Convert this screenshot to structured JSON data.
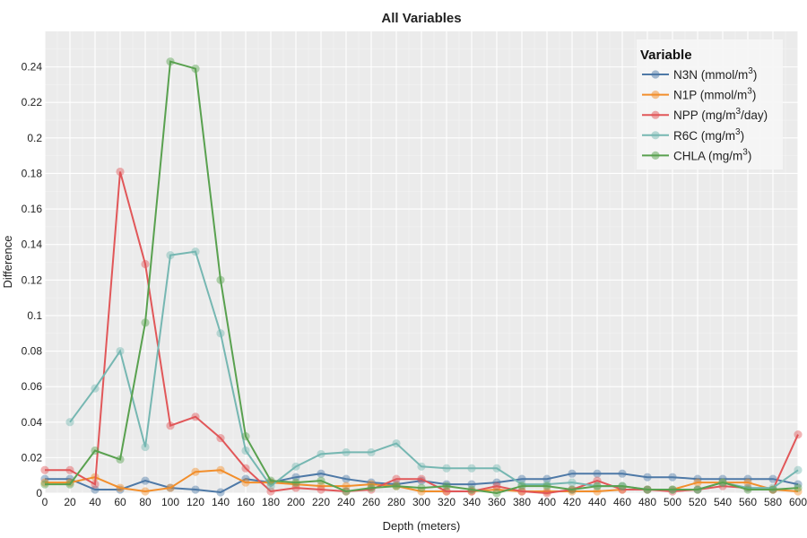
{
  "chart_data": {
    "type": "line",
    "title": "All Variables",
    "xlabel": "Depth (meters)",
    "ylabel": "Difference",
    "xlim": [
      0,
      600
    ],
    "ylim": [
      0,
      0.26
    ],
    "grid": true,
    "legend_title": "Variable",
    "legend_position": "top-right",
    "x_ticks": [
      0,
      20,
      40,
      60,
      80,
      100,
      120,
      140,
      160,
      180,
      200,
      220,
      240,
      260,
      280,
      300,
      320,
      340,
      360,
      380,
      400,
      420,
      440,
      460,
      480,
      500,
      520,
      540,
      560,
      580,
      600
    ],
    "y_ticks": [
      0,
      0.02,
      0.04,
      0.06,
      0.08,
      0.1,
      0.12,
      0.14,
      0.16,
      0.18,
      0.2,
      0.22,
      0.24
    ],
    "x": [
      0,
      20,
      40,
      60,
      80,
      100,
      120,
      140,
      160,
      180,
      200,
      220,
      240,
      260,
      280,
      300,
      320,
      340,
      360,
      380,
      400,
      420,
      440,
      460,
      480,
      500,
      520,
      540,
      560,
      580,
      600
    ],
    "series": [
      {
        "name": "N3N",
        "unit": "(mmol/m",
        "sup": "3",
        "unit_end": ")",
        "color": "#4e79a7",
        "values": [
          0.008,
          0.008,
          0.002,
          0.002,
          0.007,
          0.003,
          0.002,
          0.0005,
          0.008,
          0.006,
          0.009,
          0.011,
          0.008,
          0.006,
          0.005,
          0.007,
          0.005,
          0.005,
          0.006,
          0.008,
          0.008,
          0.011,
          0.011,
          0.011,
          0.009,
          0.009,
          0.008,
          0.008,
          0.008,
          0.008,
          0.005
        ]
      },
      {
        "name": "N1P",
        "unit": "(mmol/m",
        "sup": "3",
        "unit_end": ")",
        "color": "#f28e2b",
        "values": [
          0.006,
          0.006,
          0.009,
          0.003,
          0.001,
          0.003,
          0.012,
          0.013,
          0.006,
          0.006,
          0.005,
          0.004,
          0.004,
          0.005,
          0.004,
          0.001,
          0.001,
          0.001,
          0.002,
          0.001,
          0.001,
          0.001,
          0.001,
          0.002,
          0.002,
          0.002,
          0.006,
          0.006,
          0.006,
          0.002,
          0.001
        ]
      },
      {
        "name": "NPP",
        "unit": "(mg/m",
        "sup": "3",
        "unit_end": "/day)",
        "color": "#e15759",
        "values": [
          0.013,
          0.013,
          0.005,
          0.181,
          0.129,
          0.038,
          0.043,
          0.031,
          0.014,
          0.001,
          0.003,
          0.002,
          0.001,
          0.002,
          0.008,
          0.008,
          0.001,
          0.001,
          0.004,
          0.001,
          0.0,
          0.002,
          0.007,
          0.002,
          0.002,
          0.001,
          0.002,
          0.004,
          0.003,
          0.002,
          0.033
        ]
      },
      {
        "name": "R6C",
        "unit": "(mg/m",
        "sup": "3",
        "unit_end": ")",
        "color": "#76b7b2",
        "values": [
          null,
          0.04,
          0.059,
          0.08,
          0.026,
          0.134,
          0.136,
          0.09,
          0.024,
          0.004,
          0.015,
          0.022,
          0.023,
          0.023,
          0.028,
          0.015,
          0.014,
          0.014,
          0.014,
          0.005,
          0.005,
          0.006,
          0.004,
          0.004,
          0.002,
          0.002,
          0.002,
          0.006,
          0.003,
          0.003,
          0.013
        ]
      },
      {
        "name": "CHLA",
        "unit": "(mg/m",
        "sup": "3",
        "unit_end": ")",
        "color": "#59a14f",
        "values": [
          0.005,
          0.005,
          0.024,
          0.019,
          0.096,
          0.243,
          0.239,
          0.12,
          0.032,
          0.007,
          0.006,
          0.007,
          0.001,
          0.003,
          0.004,
          0.003,
          0.004,
          0.002,
          0.0,
          0.004,
          0.004,
          0.002,
          0.004,
          0.004,
          0.002,
          0.002,
          0.002,
          0.006,
          0.002,
          0.002,
          0.003
        ]
      }
    ]
  }
}
